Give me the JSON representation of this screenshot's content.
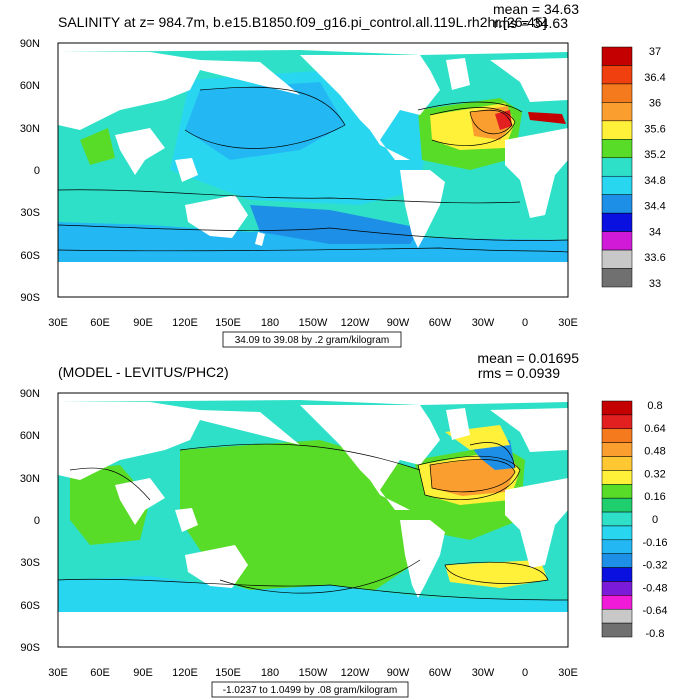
{
  "panels": [
    {
      "id": "top",
      "title": "SALINITY at z= 984.7m, b.e15.B1850.f09_g16.pi_control.all.119L.rh2hr.[26-45]",
      "stats": [
        "mean = 34.63",
        "rms = 34.63"
      ],
      "range_label": "34.09 to 39.08 by .2 gram/kilogram",
      "colorbar_labels": [
        "37",
        "36.4",
        "36",
        "35.6",
        "35.2",
        "34.8",
        "34.4",
        "34",
        "33.6",
        "33"
      ],
      "colors": [
        "#c40000",
        "#e32020",
        "#f04010",
        "#f57a1e",
        "#fb9e30",
        "#ffc833",
        "#fff03a",
        "#c8f03a",
        "#58dc28",
        "#1fcf6d",
        "#2ee0c8",
        "#29d6f0",
        "#23b8f3",
        "#1e8fe6",
        "#1458d8",
        "#0a10e0",
        "#7b1ad8",
        "#d01ad8",
        "#f01ad8",
        "#c8c8c8",
        "#707070"
      ],
      "legend_colors": [
        "#c40000",
        "#f04010",
        "#f57a1e",
        "#fb9e30",
        "#fff03a",
        "#58dc28",
        "#2ee0c8",
        "#29d6f0",
        "#1e8fe6",
        "#0a10e0",
        "#d01ad8",
        "#c8c8c8",
        "#707070"
      ]
    },
    {
      "id": "bottom",
      "title": "(MODEL - LEVITUS/PHC2)",
      "stats": [
        "mean = 0.01695",
        "rms = 0.0939"
      ],
      "range_label": "-1.0237 to 1.0499 by .08 gram/kilogram",
      "colorbar_labels": [
        "0.8",
        "0.64",
        "0.48",
        "0.32",
        "0.16",
        "0",
        "-0.16",
        "-0.32",
        "-0.48",
        "-0.64",
        "-0.8"
      ],
      "legend_colors": [
        "#c40000",
        "#e32020",
        "#f57a1e",
        "#fb9e30",
        "#ffc833",
        "#fff03a",
        "#58dc28",
        "#1fcf6d",
        "#2ee0c8",
        "#29d6f0",
        "#23b8f3",
        "#1e8fe6",
        "#0a10e0",
        "#7b1ad8",
        "#f01ad8",
        "#c8c8c8",
        "#707070"
      ]
    }
  ],
  "axes": {
    "lat_labels": [
      "90N",
      "60N",
      "30N",
      "0",
      "30S",
      "60S",
      "90S"
    ],
    "lon_labels": [
      "30E",
      "60E",
      "90E",
      "120E",
      "150E",
      "180",
      "150W",
      "120W",
      "90W",
      "60W",
      "30W",
      "0",
      "30E"
    ]
  },
  "colors": {
    "land": "#ffffff",
    "ocean_main": "#2ee0c8",
    "pacific_top": "#29d6f0",
    "southern": "#23b8f3",
    "gulfstream": "#fff03a",
    "med": "#c40000",
    "diff_green": "#58dc28",
    "diff_teal": "#2ee0c8",
    "diff_yellow": "#fff03a",
    "diff_orange": "#fb9e30"
  }
}
